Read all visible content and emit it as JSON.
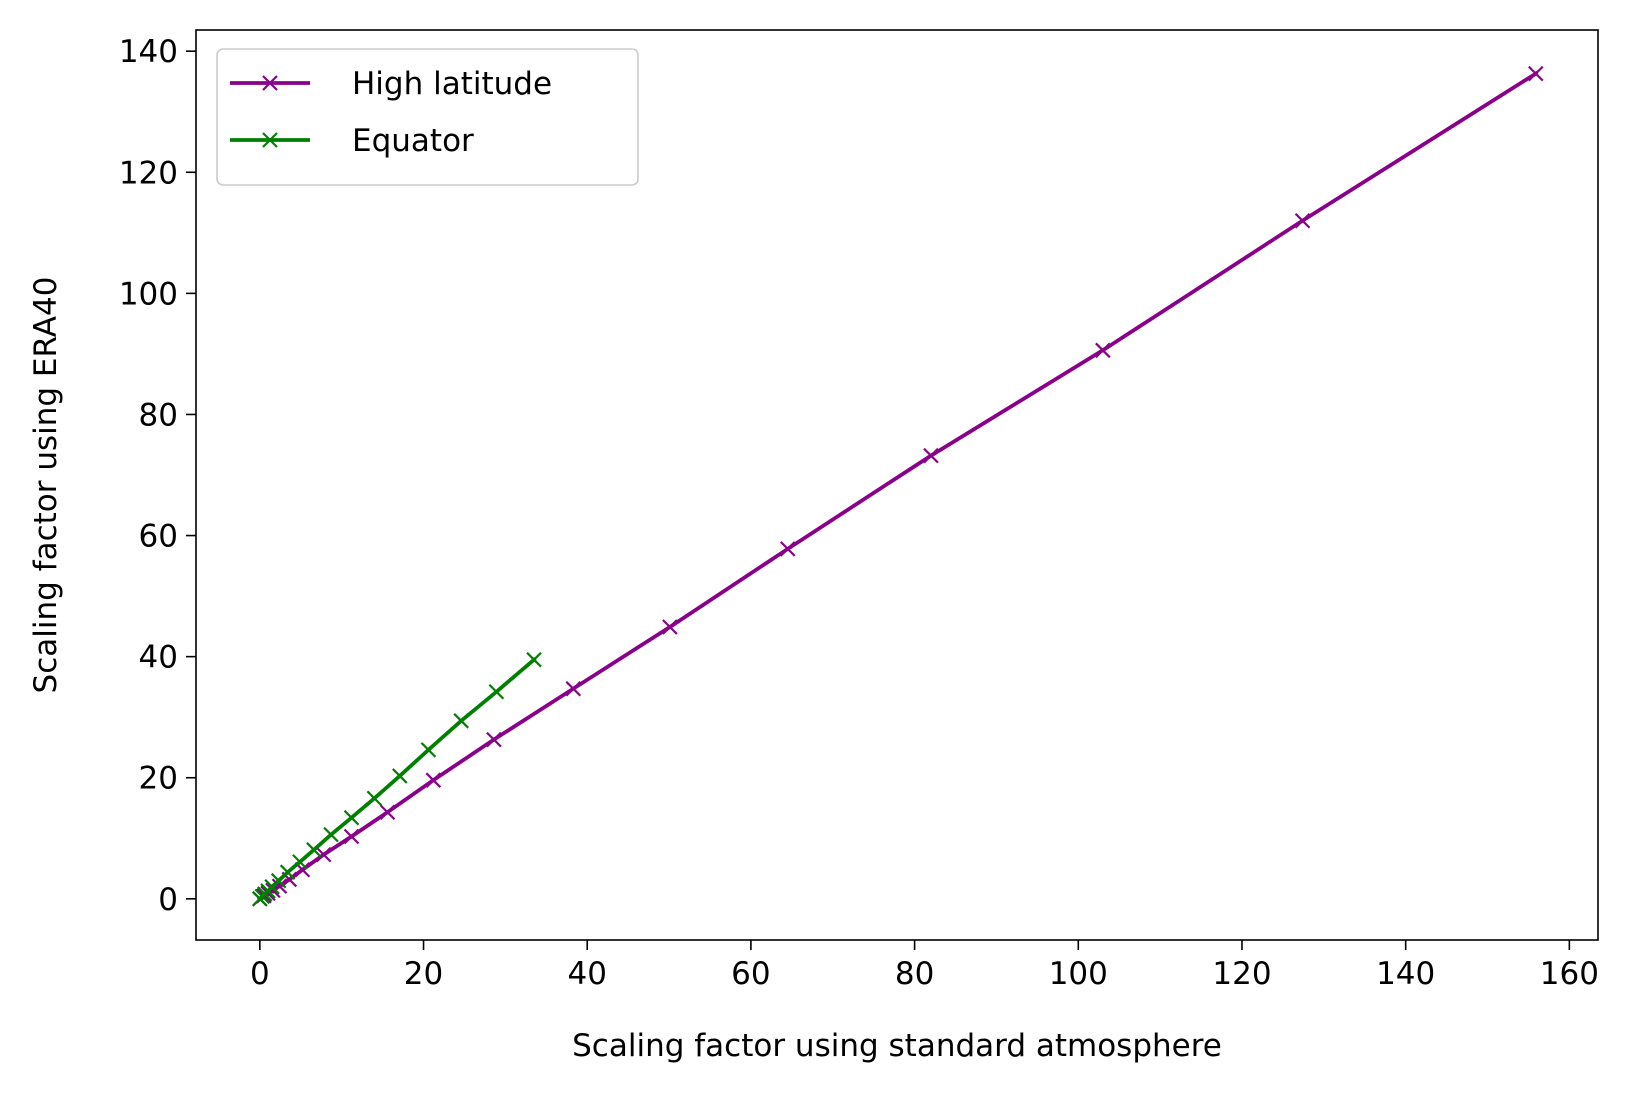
{
  "chart_data": {
    "type": "line",
    "title": "",
    "xlabel": "Scaling factor using standard atmosphere",
    "ylabel": "Scaling factor using ERA40",
    "xlim": [
      -7.8,
      163.5
    ],
    "ylim": [
      -6.8,
      143.5
    ],
    "xticks": [
      0,
      20,
      40,
      60,
      80,
      100,
      120,
      140,
      160
    ],
    "yticks": [
      0,
      20,
      40,
      60,
      80,
      100,
      120,
      140
    ],
    "xtick_labels": [
      "0",
      "20",
      "40",
      "60",
      "80",
      "100",
      "120",
      "140",
      "160"
    ],
    "ytick_labels": [
      "0",
      "20",
      "40",
      "60",
      "80",
      "100",
      "120",
      "140"
    ],
    "grid": false,
    "legend_position": "top-left",
    "marker": "x",
    "series": [
      {
        "name": "High latitude",
        "color": "#8B008B",
        "x": [
          0.0,
          0.5,
          1.0,
          1.6,
          2.4,
          3.6,
          5.2,
          7.8,
          11.2,
          15.6,
          21.2,
          28.6,
          38.3,
          50.1,
          64.5,
          82.0,
          103.0,
          127.4,
          155.9
        ],
        "y": [
          0.0,
          0.5,
          0.9,
          1.4,
          2.1,
          3.2,
          4.8,
          7.3,
          10.3,
          14.3,
          19.6,
          26.3,
          34.7,
          44.9,
          57.8,
          73.2,
          90.6,
          112.0,
          136.3
        ]
      },
      {
        "name": "Equator",
        "color": "#008000",
        "x": [
          0.0,
          0.3,
          0.6,
          1.0,
          1.5,
          2.3,
          3.4,
          4.9,
          6.6,
          8.7,
          11.2,
          14.0,
          17.1,
          20.6,
          24.6,
          28.9,
          33.5
        ],
        "y": [
          0.0,
          0.4,
          0.8,
          1.3,
          2.0,
          3.0,
          4.4,
          6.1,
          8.1,
          10.6,
          13.4,
          16.6,
          20.3,
          24.6,
          29.4,
          34.2,
          39.5
        ]
      }
    ]
  }
}
